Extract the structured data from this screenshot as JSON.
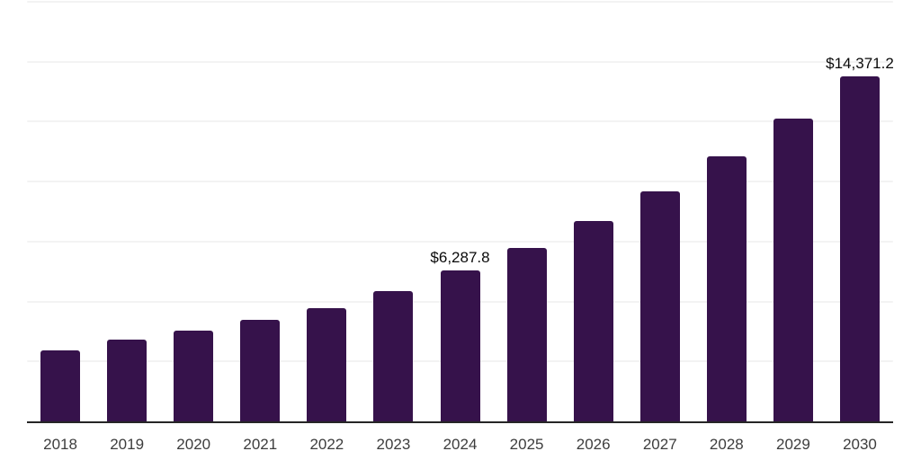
{
  "chart_data": {
    "type": "bar",
    "title": "",
    "xlabel": "",
    "ylabel": "",
    "legend": "none",
    "grid": true,
    "ylim": [
      0,
      17500
    ],
    "grid_step": 2500,
    "categories": [
      "2018",
      "2019",
      "2020",
      "2021",
      "2022",
      "2023",
      "2024",
      "2025",
      "2026",
      "2027",
      "2028",
      "2029",
      "2030"
    ],
    "values": [
      2960,
      3410,
      3780,
      4230,
      4720,
      5430,
      6287.8,
      7230,
      8350,
      9590,
      11050,
      12620,
      14371.2
    ],
    "data_labels": {
      "2024": "$6,287.8",
      "2030": "$14,371.2"
    },
    "colors": {
      "bar": "#36124b",
      "axis": "#262626",
      "grid": "#f3f3f3",
      "data_label": "#0a0a0a",
      "tick_label": "#3d3d3d",
      "background": "#ffffff"
    }
  }
}
